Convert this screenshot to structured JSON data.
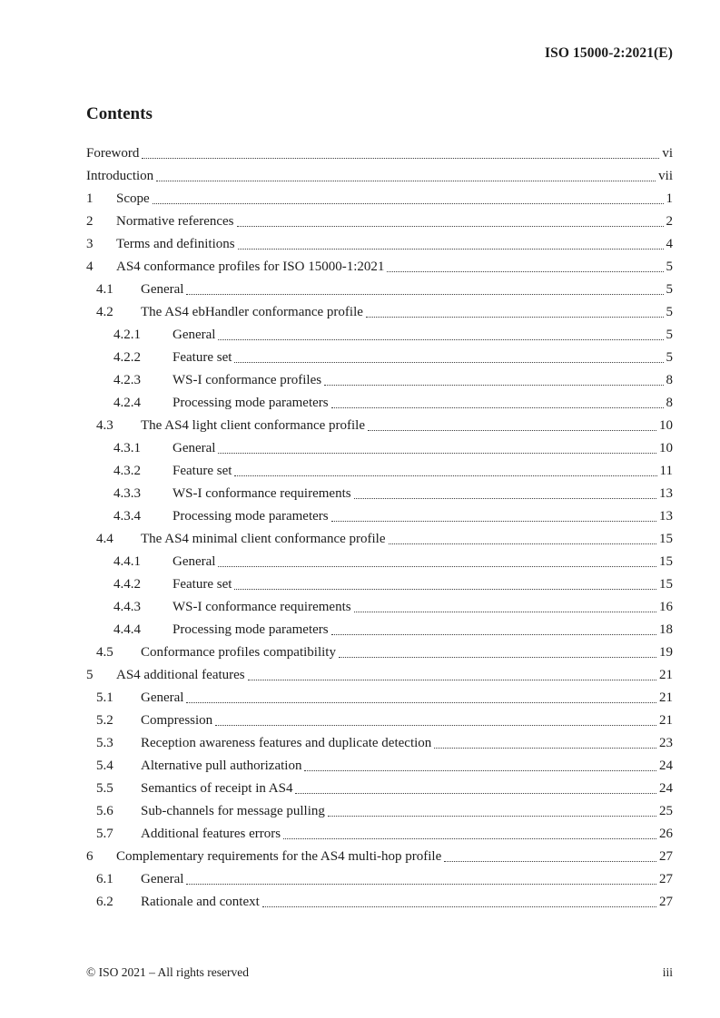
{
  "colors": {
    "text": "#1c1c1c",
    "background": "#ffffff",
    "leader_dots": "#3c3c3c"
  },
  "header": {
    "document_reference": "ISO 15000-2:2021(E)"
  },
  "contents": {
    "title": "Contents"
  },
  "toc": {
    "entries": [
      {
        "level": 0,
        "num": "",
        "label": "Foreword",
        "page": "vi"
      },
      {
        "level": 0,
        "num": "",
        "label": "Introduction",
        "page": "vii"
      },
      {
        "level": 1,
        "num": "1",
        "label": "Scope",
        "page": "1"
      },
      {
        "level": 1,
        "num": "2",
        "label": "Normative references",
        "page": "2"
      },
      {
        "level": 1,
        "num": "3",
        "label": "Terms and definitions",
        "page": "4"
      },
      {
        "level": 1,
        "num": "4",
        "label": "AS4 conformance profiles for ISO 15000-1:2021",
        "page": "5"
      },
      {
        "level": 2,
        "num": "4.1",
        "label": "General",
        "page": "5"
      },
      {
        "level": 2,
        "num": "4.2",
        "label": "The AS4 ebHandler conformance profile",
        "page": "5"
      },
      {
        "level": 3,
        "num": "4.2.1",
        "label": "General",
        "page": "5"
      },
      {
        "level": 3,
        "num": "4.2.2",
        "label": "Feature set",
        "page": "5"
      },
      {
        "level": 3,
        "num": "4.2.3",
        "label": "WS-I conformance profiles",
        "page": "8"
      },
      {
        "level": 3,
        "num": "4.2.4",
        "label": "Processing mode parameters",
        "page": "8"
      },
      {
        "level": 2,
        "num": "4.3",
        "label": "The AS4 light client conformance profile",
        "page": "10"
      },
      {
        "level": 3,
        "num": "4.3.1",
        "label": "General",
        "page": "10"
      },
      {
        "level": 3,
        "num": "4.3.2",
        "label": "Feature set",
        "page": "11"
      },
      {
        "level": 3,
        "num": "4.3.3",
        "label": "WS-I conformance requirements",
        "page": "13"
      },
      {
        "level": 3,
        "num": "4.3.4",
        "label": "Processing mode parameters",
        "page": "13"
      },
      {
        "level": 2,
        "num": "4.4",
        "label": "The AS4 minimal client conformance profile",
        "page": "15"
      },
      {
        "level": 3,
        "num": "4.4.1",
        "label": "General",
        "page": "15"
      },
      {
        "level": 3,
        "num": "4.4.2",
        "label": "Feature set",
        "page": "15"
      },
      {
        "level": 3,
        "num": "4.4.3",
        "label": "WS-I conformance requirements",
        "page": "16"
      },
      {
        "level": 3,
        "num": "4.4.4",
        "label": "Processing mode parameters",
        "page": "18"
      },
      {
        "level": 2,
        "num": "4.5",
        "label": "Conformance profiles compatibility",
        "page": "19"
      },
      {
        "level": 1,
        "num": "5",
        "label": "AS4 additional features",
        "page": "21"
      },
      {
        "level": 2,
        "num": "5.1",
        "label": "General",
        "page": "21"
      },
      {
        "level": 2,
        "num": "5.2",
        "label": "Compression",
        "page": "21"
      },
      {
        "level": 2,
        "num": "5.3",
        "label": "Reception awareness features and duplicate detection",
        "page": "23"
      },
      {
        "level": 2,
        "num": "5.4",
        "label": "Alternative pull authorization",
        "page": "24"
      },
      {
        "level": 2,
        "num": "5.5",
        "label": "Semantics of receipt in AS4",
        "page": "24"
      },
      {
        "level": 2,
        "num": "5.6",
        "label": "Sub-channels for message pulling",
        "page": "25"
      },
      {
        "level": 2,
        "num": "5.7",
        "label": "Additional features errors",
        "page": "26"
      },
      {
        "level": 1,
        "num": "6",
        "label": "Complementary requirements for the AS4 multi-hop profile",
        "page": "27"
      },
      {
        "level": 2,
        "num": "6.1",
        "label": "General",
        "page": "27"
      },
      {
        "level": 2,
        "num": "6.2",
        "label": "Rationale and context",
        "page": "27"
      }
    ]
  },
  "footer": {
    "copyright": "© ISO 2021 – All rights reserved",
    "page_number": "iii"
  }
}
